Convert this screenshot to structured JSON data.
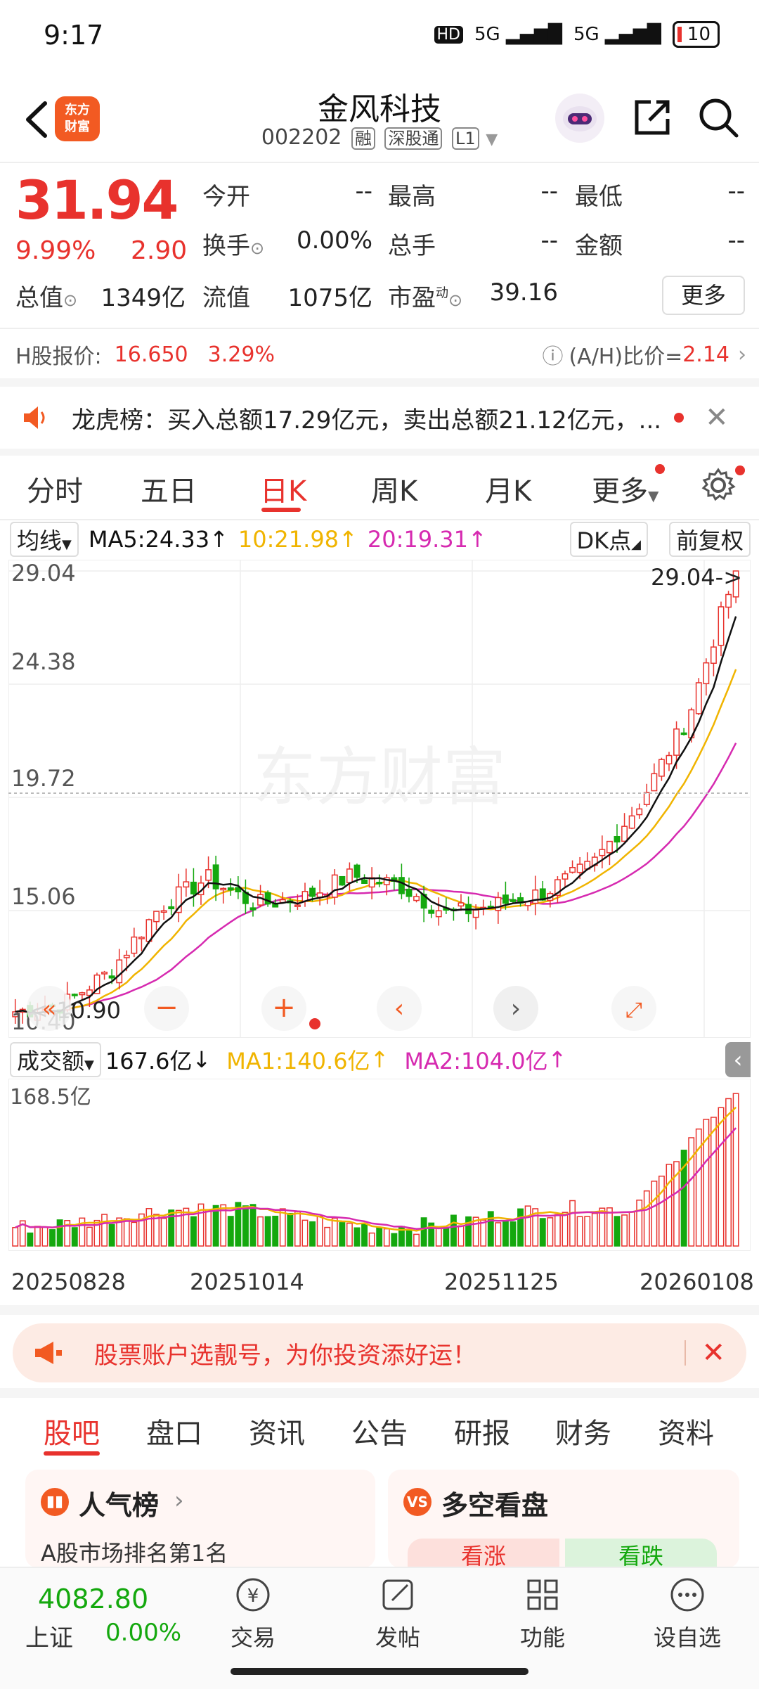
{
  "status": {
    "time": "9:17",
    "network1": "5G",
    "network2": "5G",
    "hd": "HD",
    "battery": "10"
  },
  "header": {
    "logo_line1": "东方",
    "logo_line2": "财富",
    "title": "金风科技",
    "code": "002202",
    "tag_rong": "融",
    "tag_szt": "深股通",
    "tag_level": "L1"
  },
  "quote": {
    "price": "31.94",
    "change_pct": "9.99%",
    "change_amt": "2.90",
    "open_label": "今开",
    "open": "--",
    "high_label": "最高",
    "high": "--",
    "low_label": "最低",
    "low": "--",
    "turnover_label": "换手",
    "turnover": "0.00%",
    "volume_label": "总手",
    "volume": "--",
    "amount_label": "金额",
    "amount": "--",
    "mcap_label": "总值",
    "mcap": "1349亿",
    "float_label": "流值",
    "float": "1075亿",
    "pe_label": "市盈",
    "pe_sup": "动",
    "pe": "39.16",
    "more": "更多"
  },
  "hshare": {
    "label": "H股报价:",
    "price": "16.650",
    "pct": "3.29%",
    "ah_label": "(A/H)比价=",
    "ah": "2.14"
  },
  "announcement": {
    "title": "龙虎榜：",
    "text": "买入总额17.29亿元，卖出总额21.12亿元，..."
  },
  "period_tabs": [
    "分时",
    "五日",
    "日K",
    "周K",
    "月K",
    "更多"
  ],
  "ma_row": {
    "type": "均线",
    "ma5": "MA5:24.33",
    "ma10": "10:21.98",
    "ma20": "20:19.31",
    "dk": "DK点",
    "fq": "前复权"
  },
  "kchart_labels": {
    "y1": "29.04",
    "y2": "24.38",
    "y3": "19.72",
    "y4": "15.06",
    "y5": "10.40",
    "min_marker": "10.90",
    "max_marker": "29.04->",
    "watermark": "东方财富"
  },
  "vol_row": {
    "type": "成交额",
    "value": "167.6亿",
    "ma1": "MA1:140.6亿",
    "ma2": "MA2:104.0亿",
    "ymax": "168.5亿"
  },
  "dates": [
    "20250828",
    "20251014",
    "20251125",
    "20260108"
  ],
  "promo": {
    "text": "股票账户选靓号，为你投资添好运！"
  },
  "bottom_tabs": [
    "股吧",
    "盘口",
    "资讯",
    "公告",
    "研报",
    "财务",
    "资料"
  ],
  "cards": {
    "left_title": "人气榜",
    "left_sub": "A股市场排名第1名",
    "right_title": "多空看盘",
    "bull": "看涨",
    "bear": "看跌"
  },
  "nav": {
    "index_value": "4082.80",
    "index_name": "上证",
    "index_pct": "0.00%",
    "trade": "交易",
    "post": "发帖",
    "func": "功能",
    "watch": "设自选"
  },
  "colors": {
    "up": "#e8322d",
    "down": "#14a80e",
    "ma5": "#111111",
    "ma10": "#f0b400",
    "ma20": "#d62ab0",
    "accent": "#f25a22"
  },
  "chart_data": {
    "type": "candlestick",
    "ylim": [
      10.4,
      29.04
    ],
    "ma5_latest": 24.33,
    "ma10_latest": 21.98,
    "ma20_latest": 19.31,
    "x": [
      "20250828",
      "20251014",
      "20251125",
      "20260108"
    ],
    "close_path": [
      10.9,
      11.2,
      12.6,
      15.2,
      16.4,
      15.3,
      15.6,
      16.5,
      16.1,
      14.9,
      15.3,
      15.8,
      16.9,
      19.5,
      23.0,
      29.04
    ],
    "volume_max": 168.5,
    "volume_latest": 167.6,
    "volume_ma1": 140.6,
    "volume_ma2": 104.0
  }
}
